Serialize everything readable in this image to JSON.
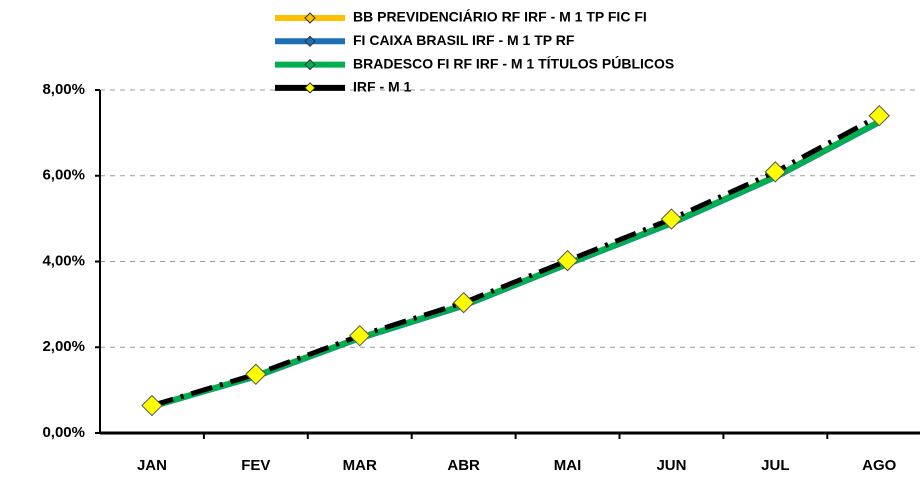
{
  "chart_data": {
    "type": "line",
    "categories": [
      "JAN",
      "FEV",
      "MAR",
      "ABR",
      "MAI",
      "JUN",
      "JUL",
      "AGO"
    ],
    "series": [
      {
        "name": "BB PREVIDENCIÁRIO RF IRF - M 1 TP FIC FI",
        "color": "#ffc000",
        "values": [
          0.62,
          1.33,
          2.22,
          2.98,
          3.95,
          4.9,
          5.98,
          7.26
        ]
      },
      {
        "name": "FI CAIXA BRASIL IRF - M 1 TP RF",
        "color": "#1f6fb5",
        "values": [
          0.62,
          1.32,
          2.21,
          2.97,
          3.94,
          4.89,
          5.97,
          7.25
        ]
      },
      {
        "name": "BRADESCO FI RF IRF - M 1 TÍTULOS PÚBLICOS",
        "color": "#00b050",
        "values": [
          0.62,
          1.33,
          2.22,
          2.98,
          3.95,
          4.9,
          5.98,
          7.26
        ]
      },
      {
        "name": "IRF - M 1",
        "color": "#000000",
        "marker_color": "#ffff00",
        "values": [
          0.64,
          1.37,
          2.27,
          3.04,
          4.02,
          4.99,
          6.09,
          7.4
        ]
      }
    ],
    "ylim": [
      0,
      8
    ],
    "yticks": [
      {
        "value": 0,
        "label": "0,00%"
      },
      {
        "value": 2,
        "label": "2,00%"
      },
      {
        "value": 4,
        "label": "4,00%"
      },
      {
        "value": 6,
        "label": "6,00%"
      },
      {
        "value": 8,
        "label": "8,00%"
      }
    ],
    "grid": true,
    "legend": "top"
  }
}
